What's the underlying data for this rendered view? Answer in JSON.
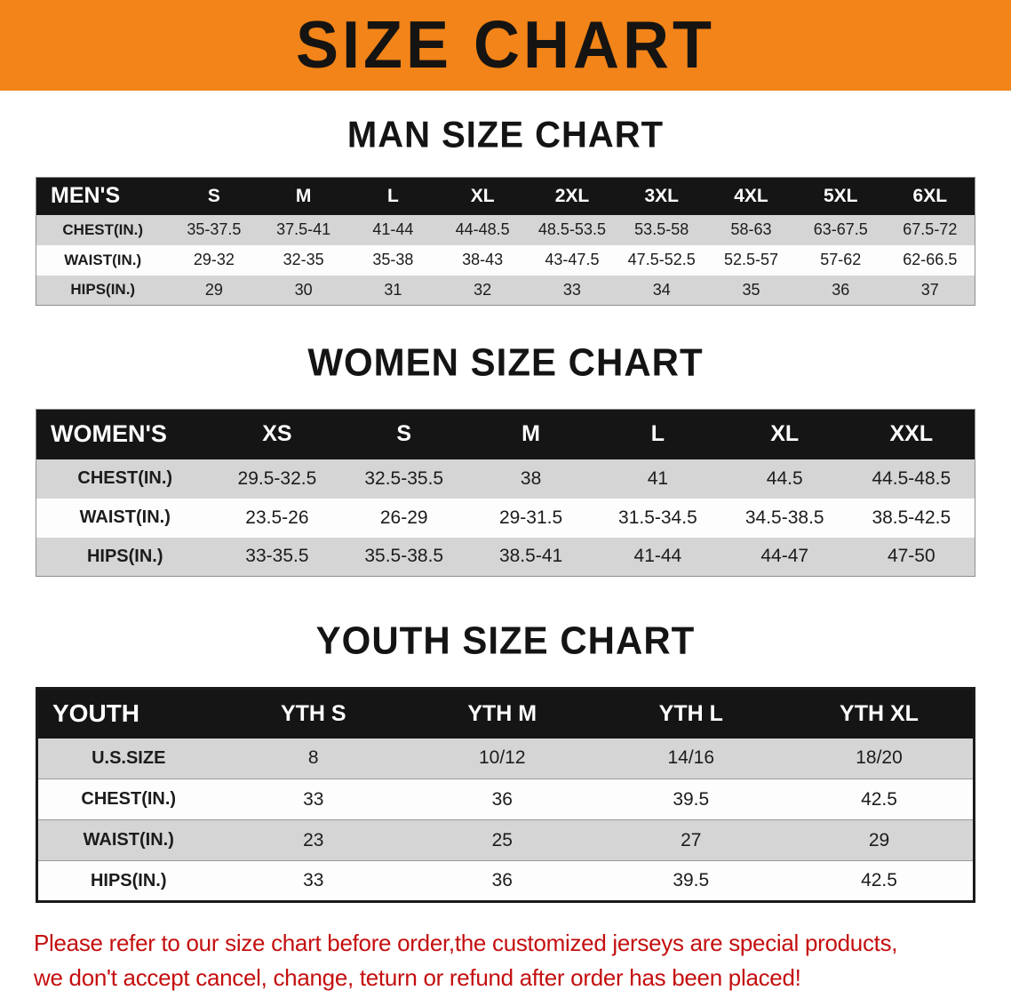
{
  "banner": {
    "title": "SIZE CHART",
    "bg_color": "#F28419",
    "text_color": "#161412"
  },
  "colors": {
    "table_header_bg": "#151515",
    "row_alt_bg": "#d5d5d5",
    "disclaimer_red": "#C40F0F"
  },
  "chart_data": [
    {
      "type": "table",
      "title": "MAN SIZE CHART",
      "group_label": "MEN'S",
      "columns": [
        "S",
        "M",
        "L",
        "XL",
        "2XL",
        "3XL",
        "4XL",
        "5XL",
        "6XL"
      ],
      "rows": [
        {
          "label": "CHEST(IN.)",
          "values": [
            "35-37.5",
            "37.5-41",
            "41-44",
            "44-48.5",
            "48.5-53.5",
            "53.5-58",
            "58-63",
            "63-67.5",
            "67.5-72"
          ]
        },
        {
          "label": "WAIST(IN.)",
          "values": [
            "29-32",
            "32-35",
            "35-38",
            "38-43",
            "43-47.5",
            "47.5-52.5",
            "52.5-57",
            "57-62",
            "62-66.5"
          ]
        },
        {
          "label": "HIPS(IN.)",
          "values": [
            "29",
            "30",
            "31",
            "32",
            "33",
            "34",
            "35",
            "36",
            "37"
          ]
        }
      ]
    },
    {
      "type": "table",
      "title": "WOMEN SIZE CHART",
      "group_label": "WOMEN'S",
      "columns": [
        "XS",
        "S",
        "M",
        "L",
        "XL",
        "XXL"
      ],
      "rows": [
        {
          "label": "CHEST(IN.)",
          "values": [
            "29.5-32.5",
            "32.5-35.5",
            "38",
            "41",
            "44.5",
            "44.5-48.5"
          ]
        },
        {
          "label": "WAIST(IN.)",
          "values": [
            "23.5-26",
            "26-29",
            "29-31.5",
            "31.5-34.5",
            "34.5-38.5",
            "38.5-42.5"
          ]
        },
        {
          "label": "HIPS(IN.)",
          "values": [
            "33-35.5",
            "35.5-38.5",
            "38.5-41",
            "41-44",
            "44-47",
            "47-50"
          ]
        }
      ]
    },
    {
      "type": "table",
      "title": "YOUTH SIZE CHART",
      "group_label": "YOUTH",
      "columns": [
        "YTH S",
        "YTH M",
        "YTH L",
        "YTH XL"
      ],
      "rows": [
        {
          "label": "U.S.SIZE",
          "values": [
            "8",
            "10/12",
            "14/16",
            "18/20"
          ]
        },
        {
          "label": "CHEST(IN.)",
          "values": [
            "33",
            "36",
            "39.5",
            "42.5"
          ]
        },
        {
          "label": "WAIST(IN.)",
          "values": [
            "23",
            "25",
            "27",
            "29"
          ]
        },
        {
          "label": "HIPS(IN.)",
          "values": [
            "33",
            "36",
            "39.5",
            "42.5"
          ]
        }
      ]
    }
  ],
  "footer": {
    "line1": "Please refer to our size chart before order,the customized jerseys are special products,",
    "line2": "we don't accept cancel, change, teturn or refund after order has been placed!",
    "text_color": "#C40F0F"
  }
}
